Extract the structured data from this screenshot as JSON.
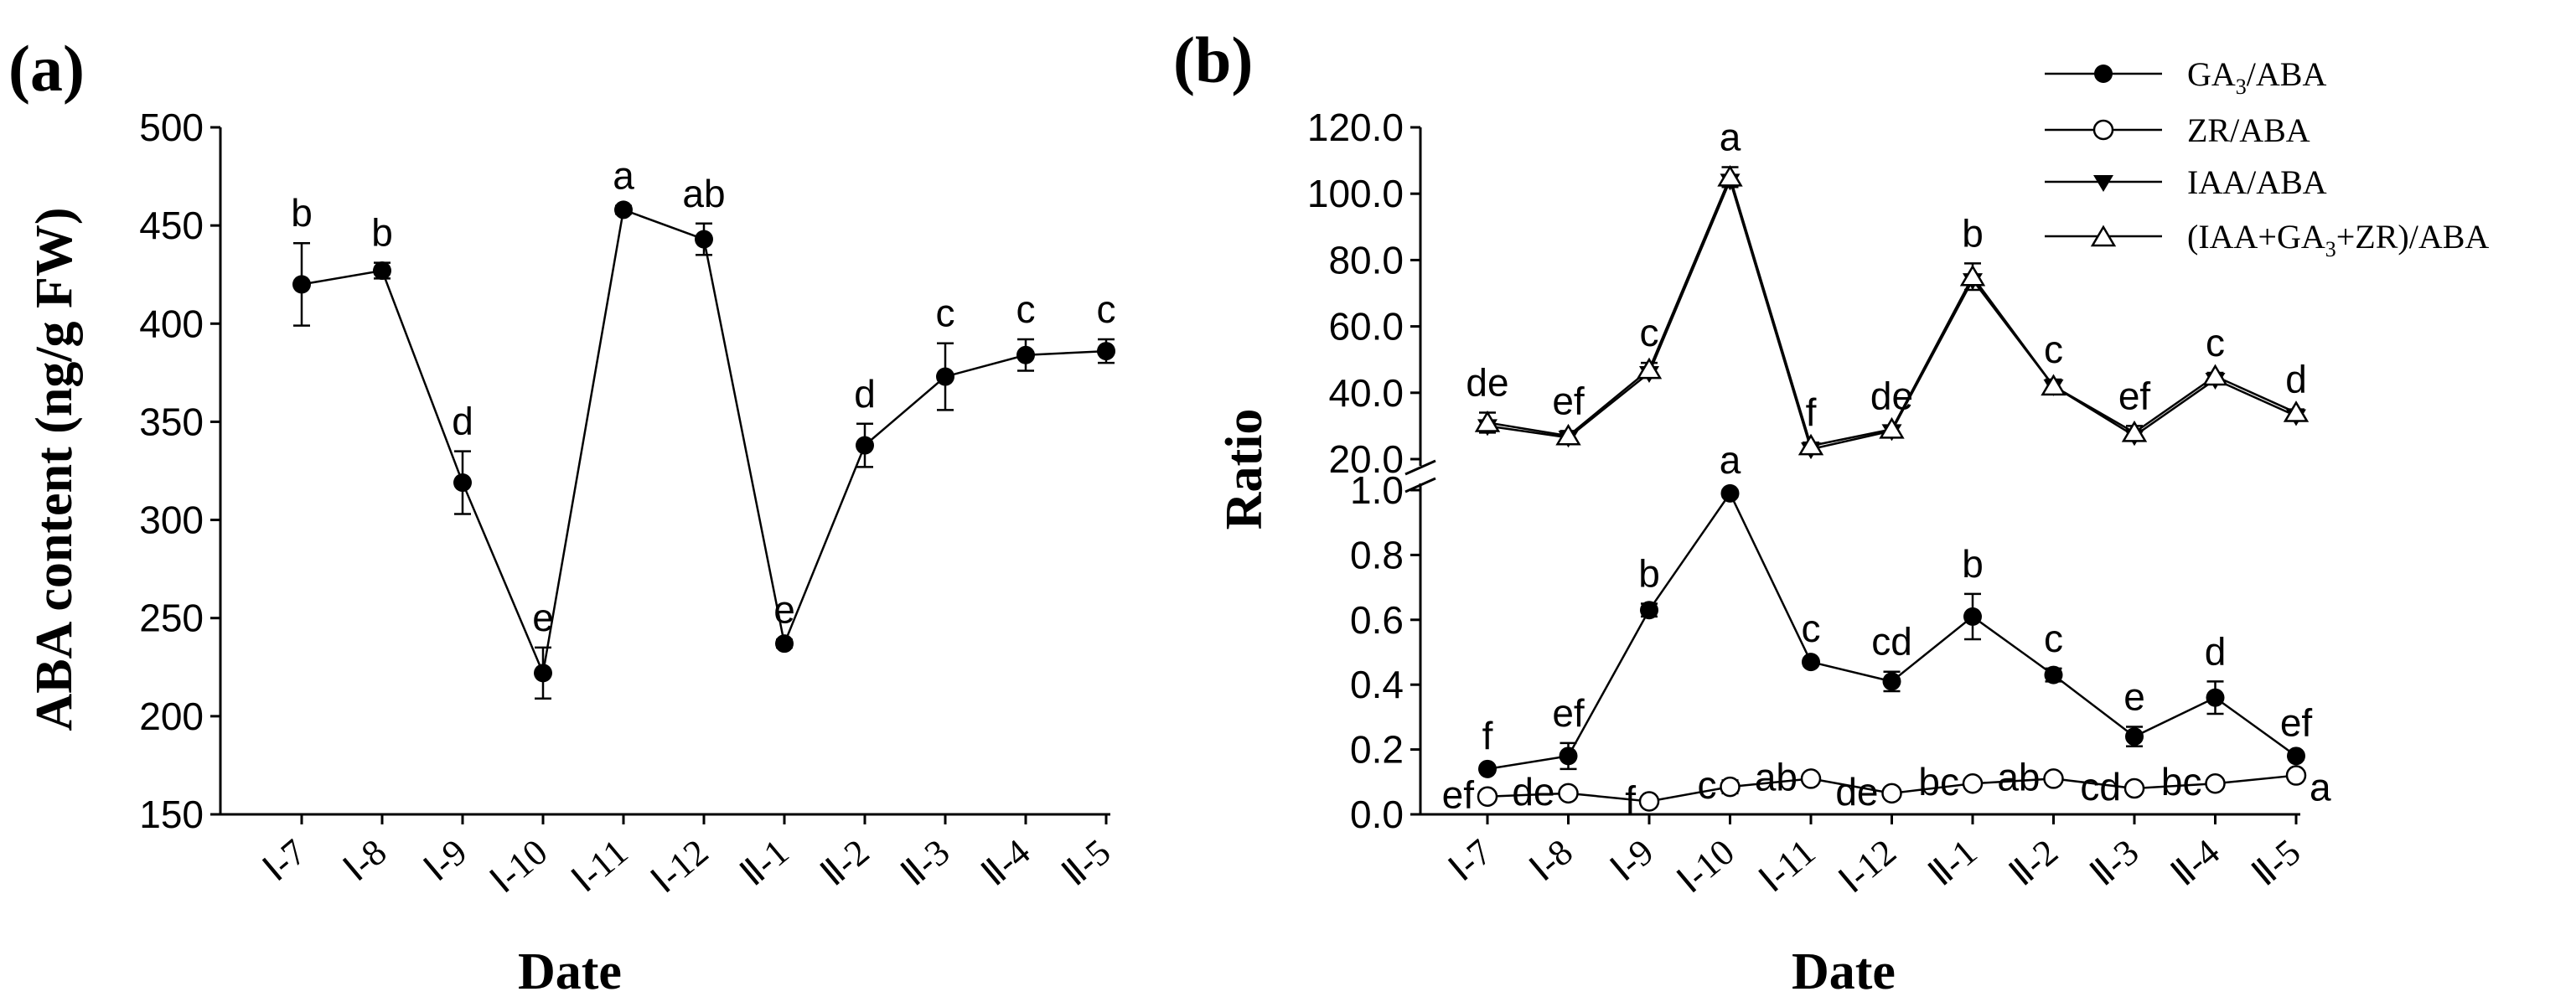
{
  "panels": {
    "a_label": "(a)",
    "b_label": "(b)"
  },
  "chart_data": [
    {
      "type": "line",
      "panel": "(a)",
      "xlabel": "Date",
      "ylabel": "ABA content (ng/g FW)",
      "categories": [
        "Ⅰ-7",
        "Ⅰ-8",
        "Ⅰ-9",
        "Ⅰ-10",
        "Ⅰ-11",
        "Ⅰ-12",
        "Ⅱ-1",
        "Ⅱ-2",
        "Ⅱ-3",
        "Ⅱ-4",
        "Ⅱ-5"
      ],
      "ylim": [
        150,
        500
      ],
      "yticks": [
        "150",
        "200",
        "250",
        "300",
        "350",
        "400",
        "450",
        "500"
      ],
      "series": [
        {
          "marker": "filled-circle",
          "values": [
            420,
            427,
            319,
            222,
            458,
            443,
            237,
            338,
            373,
            384,
            386
          ],
          "errors": [
            21,
            4,
            16,
            13,
            2,
            8,
            2,
            11,
            17,
            8,
            6
          ],
          "letters": [
            "b",
            "b",
            "d",
            "e",
            "a",
            "ab",
            "e",
            "d",
            "c",
            "c",
            "c"
          ]
        }
      ]
    },
    {
      "type": "line",
      "panel": "(b)",
      "xlabel": "Date",
      "ylabel": "Ratio",
      "categories": [
        "Ⅰ-7",
        "Ⅰ-8",
        "Ⅰ-9",
        "Ⅰ-10",
        "Ⅰ-11",
        "Ⅰ-12",
        "Ⅱ-1",
        "Ⅱ-2",
        "Ⅱ-3",
        "Ⅱ-4",
        "Ⅱ-5"
      ],
      "broken_axis": true,
      "upper_ylim": [
        20,
        120
      ],
      "upper_yticks": [
        "20.0",
        "40.0",
        "60.0",
        "80.0",
        "100.0",
        "120.0"
      ],
      "lower_ylim": [
        0,
        1
      ],
      "lower_yticks": [
        "0.0",
        "0.2",
        "0.4",
        "0.6",
        "0.8",
        "1.0"
      ],
      "legend_position": "top-right",
      "legend": {
        "ga3": {
          "pre": "GA",
          "sub": "3",
          "post": "/ABA"
        },
        "zr": {
          "text": "ZR/ABA"
        },
        "iaa": {
          "text": "IAA/ABA"
        },
        "total": {
          "pre": "(IAA+GA",
          "sub": "3",
          "post": "+ZR)/ABA"
        }
      },
      "series": [
        {
          "name": "GA3/ABA",
          "marker": "filled-circle",
          "values": [
            0.14,
            0.18,
            0.63,
            0.99,
            0.47,
            0.41,
            0.61,
            0.43,
            0.24,
            0.36,
            0.18
          ],
          "errors": [
            0.01,
            0.04,
            0.02,
            0.01,
            0.01,
            0.03,
            0.07,
            0.02,
            0.03,
            0.05,
            0.01
          ],
          "letters": [
            "f",
            "ef",
            "b",
            "a",
            "c",
            "cd",
            "b",
            "c",
            "e",
            "d",
            "ef"
          ]
        },
        {
          "name": "ZR/ABA",
          "marker": "open-circle",
          "values": [
            0.055,
            0.065,
            0.04,
            0.085,
            0.11,
            0.065,
            0.095,
            0.11,
            0.08,
            0.095,
            0.12
          ],
          "errors": [
            0.005,
            0.01,
            0.005,
            0.02,
            0.01,
            0.005,
            0.01,
            0.01,
            0.01,
            0.01,
            0.005
          ],
          "letters": [
            "ef",
            "de",
            "f",
            "c",
            "ab",
            "de",
            "bc",
            "ab",
            "cd",
            "bc",
            "a"
          ]
        },
        {
          "name": "IAA/ABA",
          "marker": "filled-down-triangle",
          "values": [
            30,
            26.5,
            46,
            104,
            23,
            28.5,
            74,
            42,
            27,
            44,
            33
          ]
        },
        {
          "name": "(IAA+GA3+ZR)/ABA",
          "marker": "open-up-triangle",
          "values": [
            31,
            27,
            47,
            105,
            24,
            29,
            75,
            42,
            28,
            45,
            34
          ],
          "errors": [
            3,
            1.5,
            2,
            3,
            1,
            1,
            4,
            2,
            2,
            1,
            1
          ],
          "letters": [
            "de",
            "ef",
            "c",
            "a",
            "f",
            "de",
            "b",
            "c",
            "ef",
            "c",
            "d"
          ]
        }
      ]
    }
  ]
}
